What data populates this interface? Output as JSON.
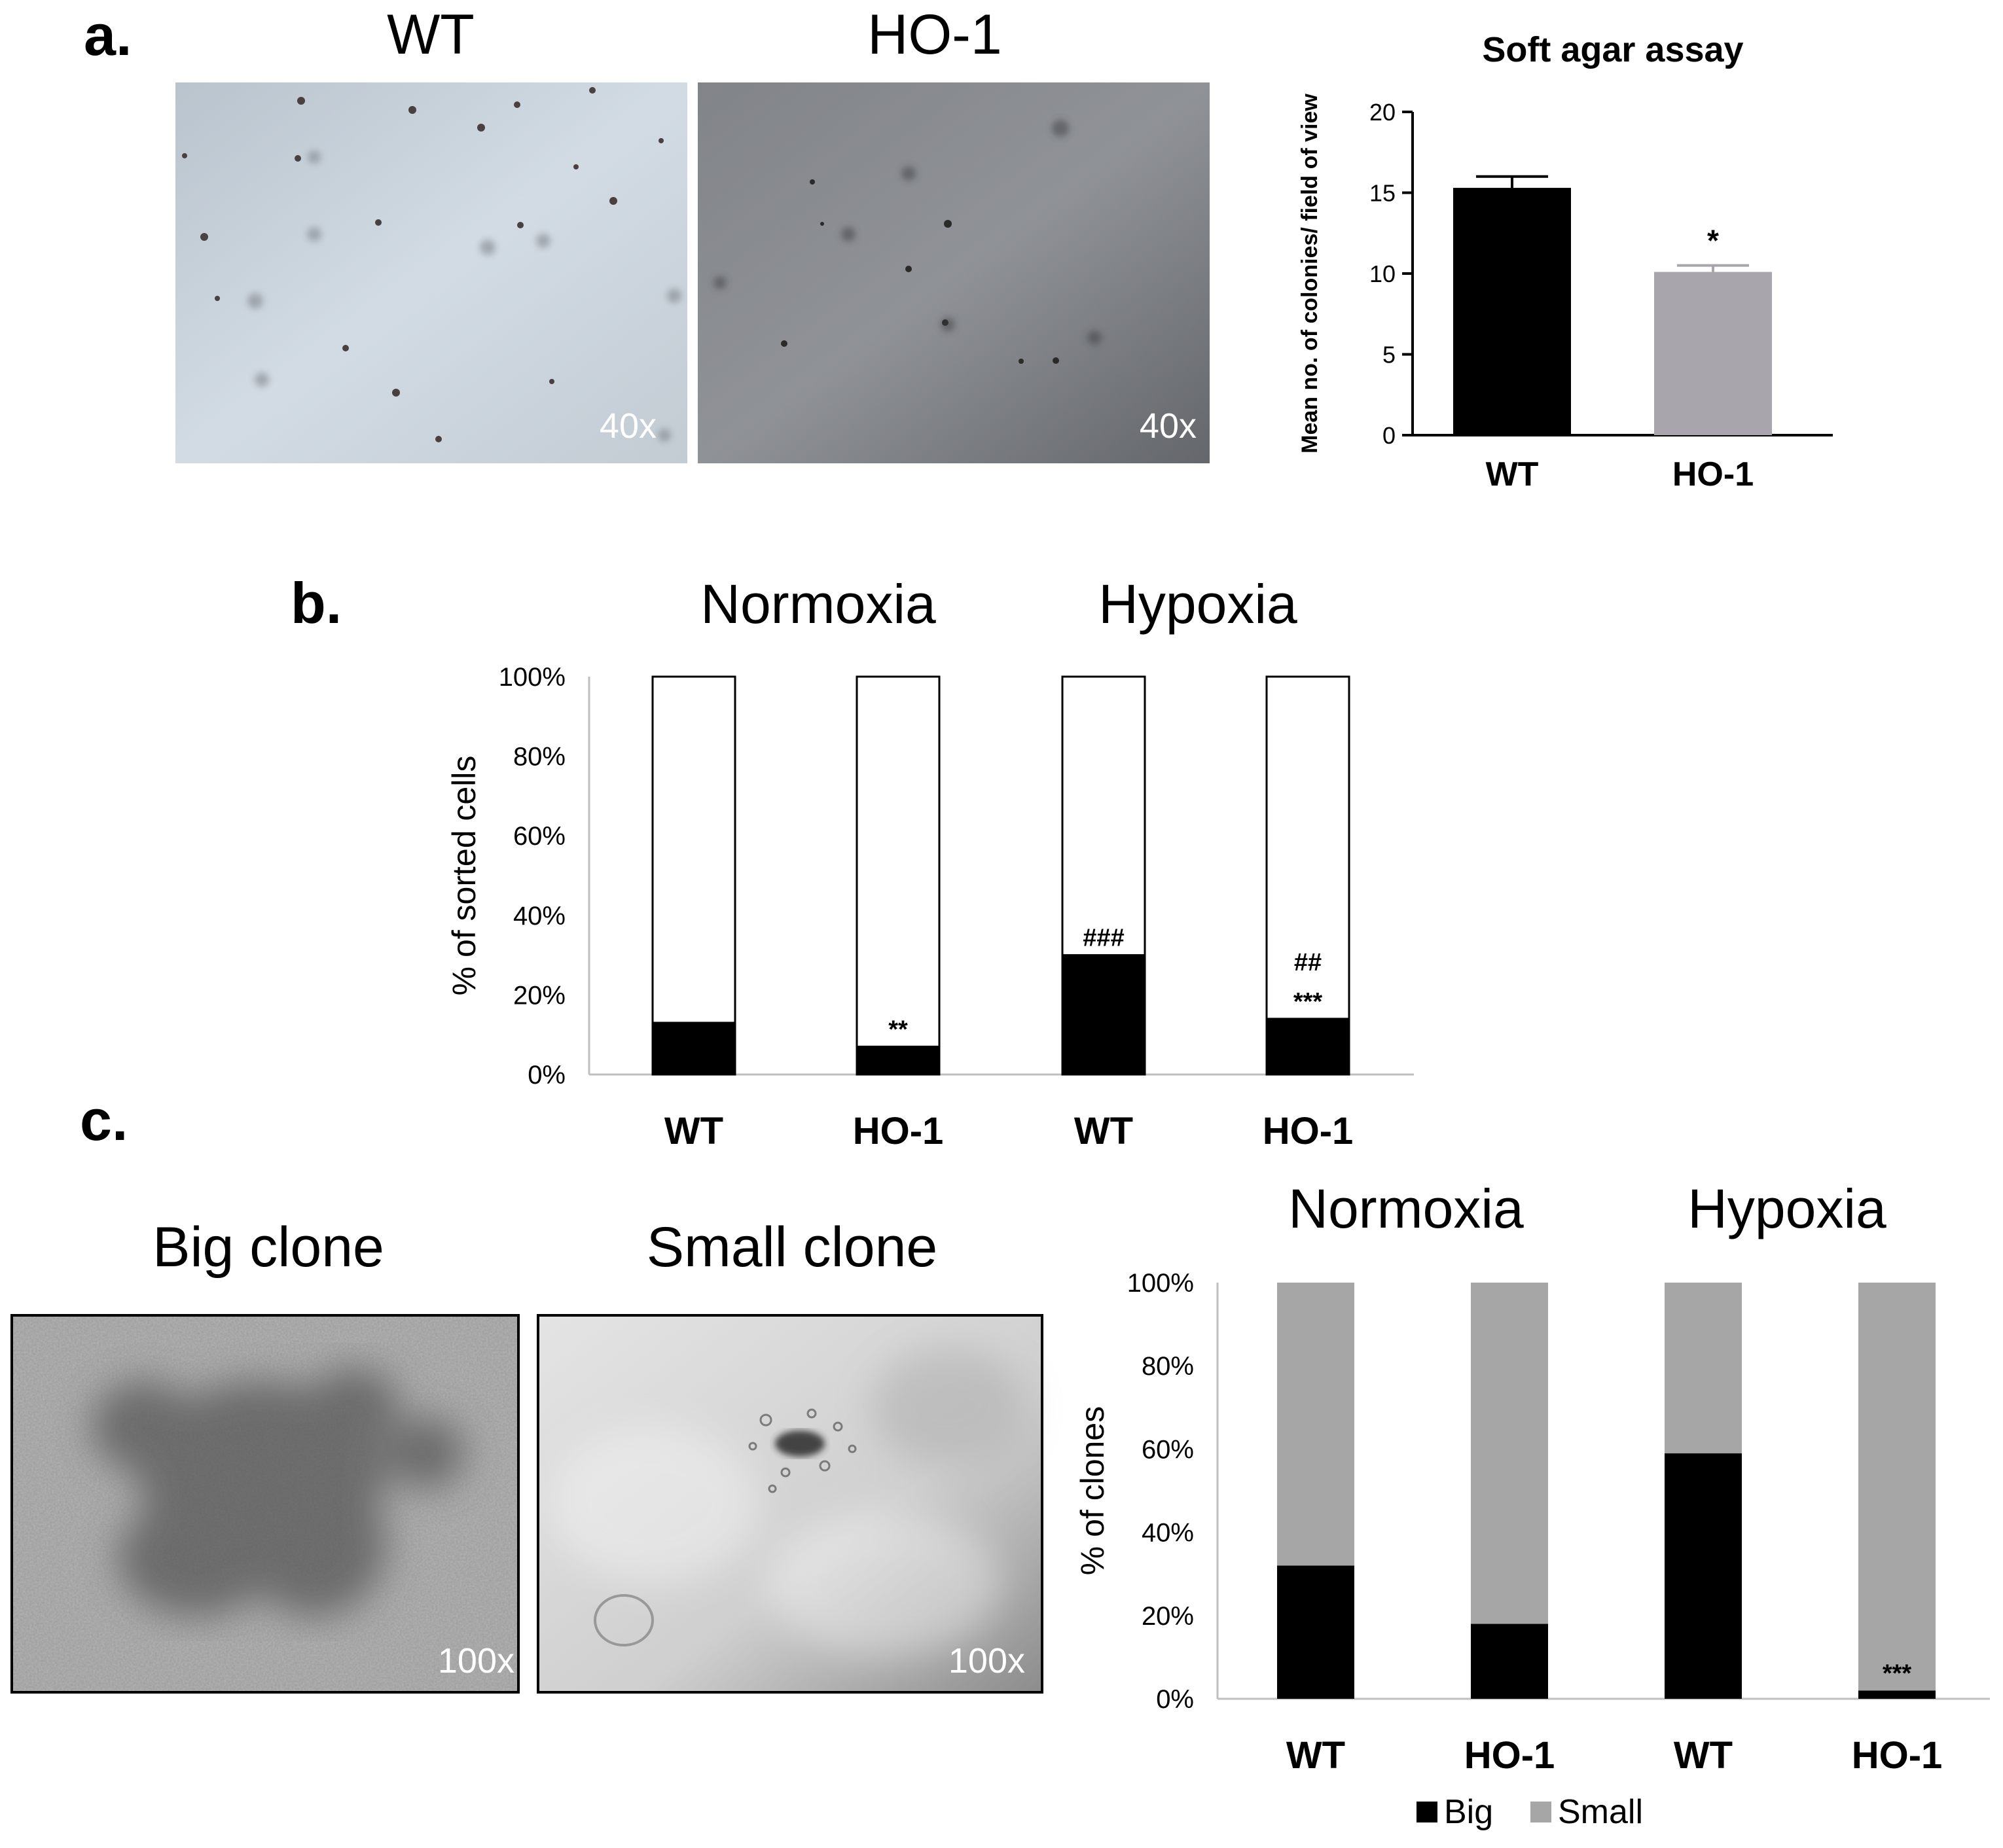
{
  "panel_labels": {
    "a": "a.",
    "b": "b.",
    "c": "c."
  },
  "panel_a": {
    "micrographs": [
      {
        "title": "WT",
        "magnification": "40x"
      },
      {
        "title": "HO-1",
        "magnification": "40x"
      }
    ]
  },
  "panel_c": {
    "micrographs": [
      {
        "title": "Big clone",
        "magnification": "100x"
      },
      {
        "title": "Small clone",
        "magnification": "100x"
      }
    ]
  },
  "colors": {
    "black": "#000000",
    "ho1_gray": "#a8a5ad",
    "small_gray": "#a6a6a6",
    "white": "#ffffff"
  },
  "chart_data": [
    {
      "id": "soft_agar",
      "type": "bar",
      "title": "Soft agar assay",
      "ylabel": "Mean no. of colonies/ field of view",
      "ylim": [
        0,
        20
      ],
      "yticks": [
        "0",
        "5",
        "10",
        "15",
        "20"
      ],
      "categories": [
        "WT",
        "HO-1"
      ],
      "values": [
        15.3,
        10.1
      ],
      "errors": [
        0.7,
        0.4
      ],
      "annotations": [
        "",
        "*"
      ]
    },
    {
      "id": "sorted_cells",
      "type": "bar",
      "stacked": true,
      "group_labels": [
        "Normoxia",
        "Hypoxia"
      ],
      "ylabel": "% of sorted cells",
      "ylim": [
        0,
        100
      ],
      "yticks": [
        "0%",
        "20%",
        "40%",
        "60%",
        "80%",
        "100%"
      ],
      "categories": [
        "WT",
        "HO-1",
        "WT",
        "HO-1"
      ],
      "series": [
        {
          "values": [
            13,
            7,
            30,
            14
          ]
        },
        {
          "values": [
            87,
            93,
            70,
            86
          ]
        }
      ],
      "annotations": [
        [],
        [
          "**"
        ],
        [
          "###"
        ],
        [
          "##",
          "***"
        ]
      ]
    },
    {
      "id": "clones",
      "type": "bar",
      "stacked": true,
      "group_labels": [
        "Normoxia",
        "Hypoxia"
      ],
      "ylabel": "% of clones",
      "ylim": [
        0,
        100
      ],
      "yticks": [
        "0%",
        "20%",
        "40%",
        "60%",
        "80%",
        "100%"
      ],
      "categories": [
        "WT",
        "HO-1",
        "WT",
        "HO-1"
      ],
      "series": [
        {
          "name": "Big",
          "values": [
            32,
            18,
            59,
            2
          ]
        },
        {
          "name": "Small",
          "values": [
            68,
            82,
            41,
            98
          ]
        }
      ],
      "annotations": [
        [],
        [],
        [],
        [
          "***"
        ]
      ],
      "legend_position": "bottom"
    }
  ]
}
